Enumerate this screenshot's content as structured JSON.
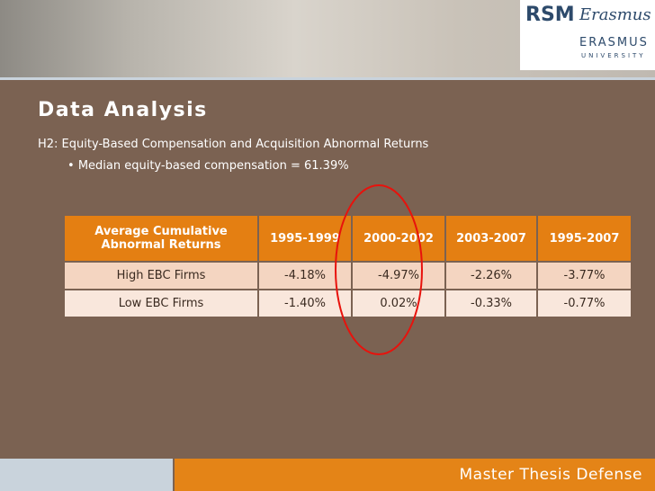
{
  "logo": {
    "mark": "RSM",
    "script": "Erasmus",
    "name": "ERASMUS",
    "sub": "UNIVERSITY"
  },
  "title": "Data Analysis",
  "subtitle": "H2: Equity-Based Compensation and Acquisition Abnormal Returns",
  "bullet": "Median equity-based compensation = 61.39%",
  "table": {
    "header": [
      "Average Cumulative Abnormal Returns",
      "1995-1999",
      "2000-2002",
      "2003-2007",
      "1995-2007"
    ],
    "rows": [
      [
        "High EBC Firms",
        "-4.18%",
        "-4.97%",
        "-2.26%",
        "-3.77%"
      ],
      [
        "Low EBC Firms",
        "-1.40%",
        "0.02%",
        "-0.33%",
        "-0.77%"
      ]
    ]
  },
  "footer": "Master Thesis Defense"
}
